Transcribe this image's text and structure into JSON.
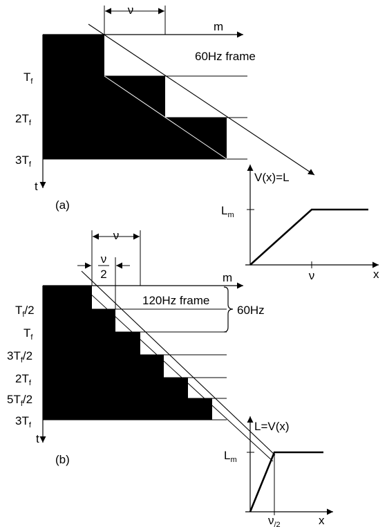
{
  "panel_a": {
    "label": "(a)",
    "axis_x": "m",
    "axis_t": "t",
    "dimension": "ν",
    "frame_label": "60Hz frame",
    "row_labels": [
      {
        "main": "T",
        "sub": "f",
        "tail": ""
      },
      {
        "main": "2T",
        "sub": "f",
        "tail": ""
      },
      {
        "main": "3T",
        "sub": "f",
        "tail": ""
      }
    ]
  },
  "panel_b": {
    "label": "(b)",
    "axis_x": "m",
    "axis_t": "t",
    "dimension": "ν",
    "half_dimension_num": "ν",
    "half_dimension_den": "2",
    "frame_label": "120Hz frame",
    "brace_label": "60Hz",
    "row_labels": [
      {
        "main": "T",
        "sub": "f",
        "tail": "/2"
      },
      {
        "main": "T",
        "sub": "f",
        "tail": ""
      },
      {
        "main": "3T",
        "sub": "f",
        "tail": "/2"
      },
      {
        "main": "2T",
        "sub": "f",
        "tail": ""
      },
      {
        "main": "5T",
        "sub": "f",
        "tail": "/2"
      },
      {
        "main": "3T",
        "sub": "f",
        "tail": ""
      }
    ]
  },
  "graph_a": {
    "title": "V(x)=L",
    "y_tick_main": "L",
    "y_tick_sub": "m",
    "x_tick": "ν",
    "x_axis": "x"
  },
  "graph_b": {
    "title": "L=V(x)",
    "y_tick_main": "L",
    "y_tick_sub": "m",
    "x_tick_main": "ν",
    "x_tick_sub": "/2",
    "x_axis": "x"
  }
}
